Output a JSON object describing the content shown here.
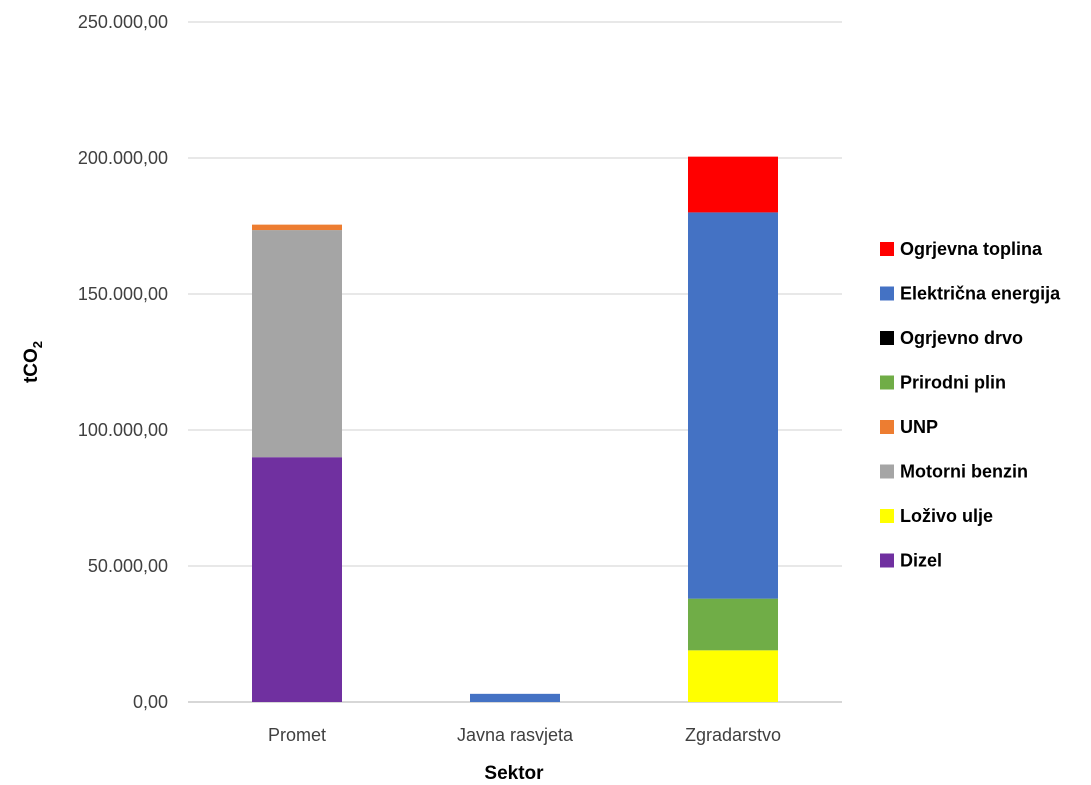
{
  "chart_data": {
    "type": "bar",
    "stacked": true,
    "xlabel": "Sektor",
    "ylabel": "tCO",
    "ylabel_subscript": "2",
    "ylim": [
      0,
      250000
    ],
    "yticks": [
      0,
      50000,
      100000,
      150000,
      200000,
      250000
    ],
    "ytick_labels": [
      "0,00",
      "50.000,00",
      "100.000,00",
      "150.000,00",
      "200.000,00",
      "250.000,00"
    ],
    "grid": true,
    "legend_position": "right",
    "categories": [
      "Promet",
      "Javna rasvjeta",
      "Zgradarstvo"
    ],
    "series": [
      {
        "name": "Dizel",
        "color": "#7030A0",
        "values": [
          90000,
          0,
          0
        ]
      },
      {
        "name": "Loživo ulje",
        "color": "#FFFF00",
        "values": [
          0,
          0,
          19000
        ]
      },
      {
        "name": "Motorni benzin",
        "color": "#A5A5A5",
        "values": [
          83500,
          0,
          0
        ]
      },
      {
        "name": "UNP",
        "color": "#ED7D31",
        "values": [
          2000,
          0,
          0
        ]
      },
      {
        "name": "Prirodni plin",
        "color": "#70AD47",
        "values": [
          0,
          0,
          19000
        ]
      },
      {
        "name": "Ogrjevno drvo",
        "color": "#000000",
        "values": [
          0,
          0,
          0
        ]
      },
      {
        "name": "Električna energija",
        "color": "#4472C4",
        "values": [
          0,
          3000,
          142000
        ]
      },
      {
        "name": "Ogrjevna toplina",
        "color": "#FF0000",
        "values": [
          0,
          0,
          20500
        ]
      }
    ],
    "legend_order": [
      "Ogrjevna toplina",
      "Električna energija",
      "Ogrjevno drvo",
      "Prirodni plin",
      "UNP",
      "Motorni benzin",
      "Loživo ulje",
      "Dizel"
    ]
  }
}
